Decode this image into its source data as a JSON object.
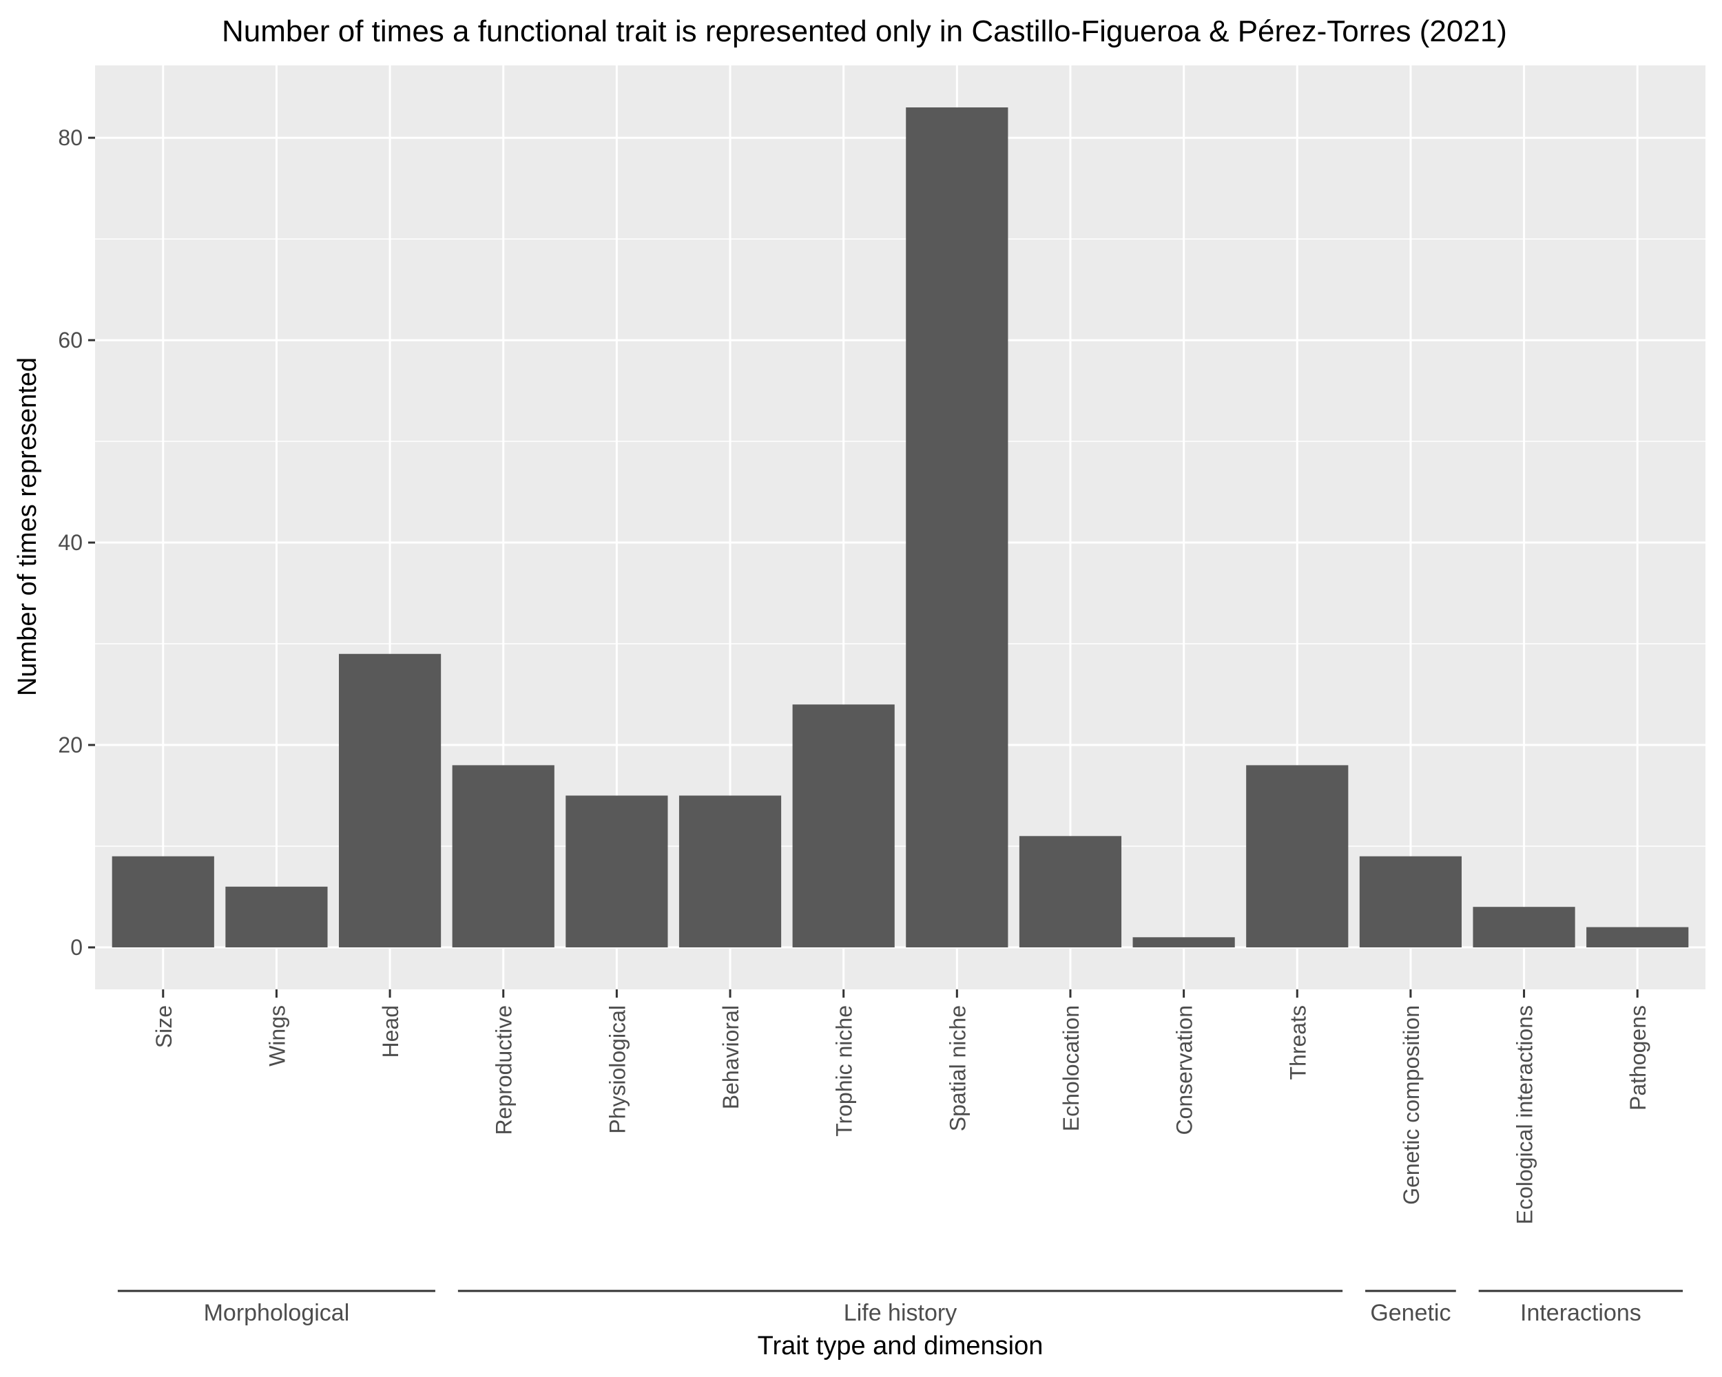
{
  "chart_data": {
    "type": "bar",
    "title": "Number of times a functional trait is represented only in Castillo-Figueroa & Pérez-Torres (2021)",
    "xlabel": "Trait type and dimension",
    "ylabel": "Number of times represented",
    "categories": [
      "Size",
      "Wings",
      "Head",
      "Reproductive",
      "Physiological",
      "Behavioral",
      "Trophic niche",
      "Spatial niche",
      "Echolocation",
      "Conservation",
      "Threats",
      "Genetic composition",
      "Ecological interactions",
      "Pathogens"
    ],
    "values": [
      9,
      6,
      29,
      18,
      15,
      15,
      24,
      83,
      11,
      1,
      18,
      9,
      4,
      2
    ],
    "groups": [
      {
        "label": "Morphological",
        "start": 0,
        "end": 2
      },
      {
        "label": "Life history",
        "start": 3,
        "end": 10
      },
      {
        "label": "Genetic",
        "start": 11,
        "end": 11
      },
      {
        "label": "Interactions",
        "start": 12,
        "end": 13
      }
    ],
    "yticks": [
      0,
      20,
      40,
      60,
      80
    ],
    "ylim": [
      -4.15,
      87.15
    ],
    "grid": true,
    "legend": "none",
    "colors": {
      "bar": "#595959",
      "panel": "#ebebeb",
      "grid": "#ffffff"
    }
  }
}
